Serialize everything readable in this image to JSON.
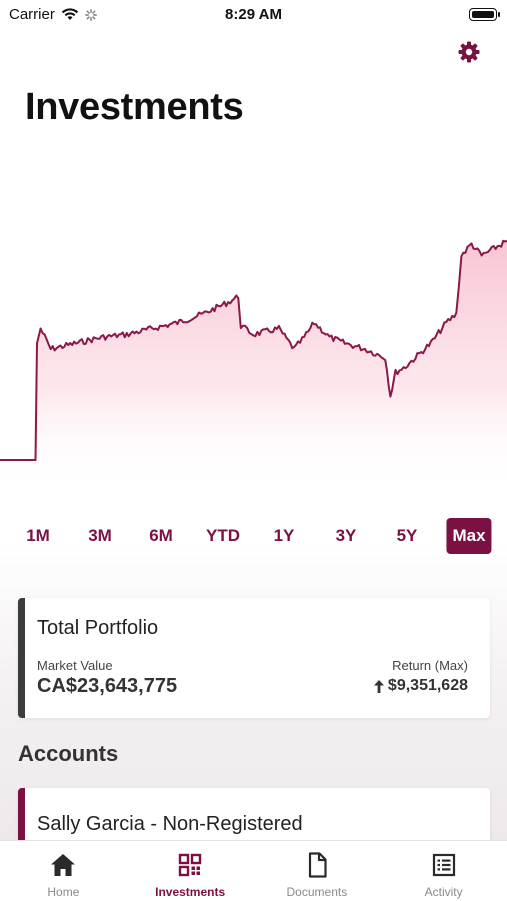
{
  "status_bar": {
    "carrier": "Carrier",
    "time": "8:29 AM"
  },
  "header": {
    "title": "Investments",
    "settings_icon": "gear-icon"
  },
  "colors": {
    "accent": "#7b1143",
    "chart_line": "#8c1748",
    "chart_fill": "#f8c9d5",
    "portfolio_bar": "#3c3c3c"
  },
  "chart_data": {
    "type": "area",
    "title": "",
    "xlabel": "",
    "ylabel": "",
    "grid": false,
    "x": [
      0,
      0.035,
      0.07,
      0.073,
      0.08,
      0.1,
      0.15,
      0.2,
      0.25,
      0.3,
      0.35,
      0.4,
      0.45,
      0.47,
      0.475,
      0.5,
      0.55,
      0.58,
      0.6,
      0.62,
      0.65,
      0.68,
      0.72,
      0.76,
      0.77,
      0.78,
      0.8,
      0.85,
      0.88,
      0.9,
      0.905,
      0.91,
      0.93,
      0.95,
      0.97,
      1.0
    ],
    "y": [
      1.0,
      1.0,
      1.0,
      0.6,
      0.55,
      0.62,
      0.6,
      0.58,
      0.57,
      0.55,
      0.53,
      0.5,
      0.46,
      0.44,
      0.54,
      0.57,
      0.55,
      0.62,
      0.58,
      0.53,
      0.58,
      0.6,
      0.62,
      0.65,
      0.78,
      0.7,
      0.68,
      0.6,
      0.53,
      0.5,
      0.4,
      0.3,
      0.26,
      0.3,
      0.28,
      0.25
    ],
    "y_scale": "inverted-normalized"
  },
  "ranges": {
    "items": [
      {
        "label": "1M",
        "active": false
      },
      {
        "label": "3M",
        "active": false
      },
      {
        "label": "6M",
        "active": false
      },
      {
        "label": "YTD",
        "active": false
      },
      {
        "label": "1Y",
        "active": false
      },
      {
        "label": "3Y",
        "active": false
      },
      {
        "label": "5Y",
        "active": false
      },
      {
        "label": "Max",
        "active": true
      }
    ]
  },
  "portfolio": {
    "title": "Total Portfolio",
    "market_value_label": "Market Value",
    "market_value": "CA$23,643,775",
    "return_label": "Return (Max)",
    "return_value": "$9,351,628",
    "return_icon": "arrow-up-icon"
  },
  "accounts": {
    "section_title": "Accounts",
    "items": [
      {
        "name": "Sally Garcia - Non-Registered"
      }
    ]
  },
  "tabs": [
    {
      "label": "Home",
      "icon": "home-icon",
      "active": false
    },
    {
      "label": "Investments",
      "icon": "grid-icon",
      "active": true
    },
    {
      "label": "Documents",
      "icon": "document-icon",
      "active": false
    },
    {
      "label": "Activity",
      "icon": "list-icon",
      "active": false
    }
  ]
}
